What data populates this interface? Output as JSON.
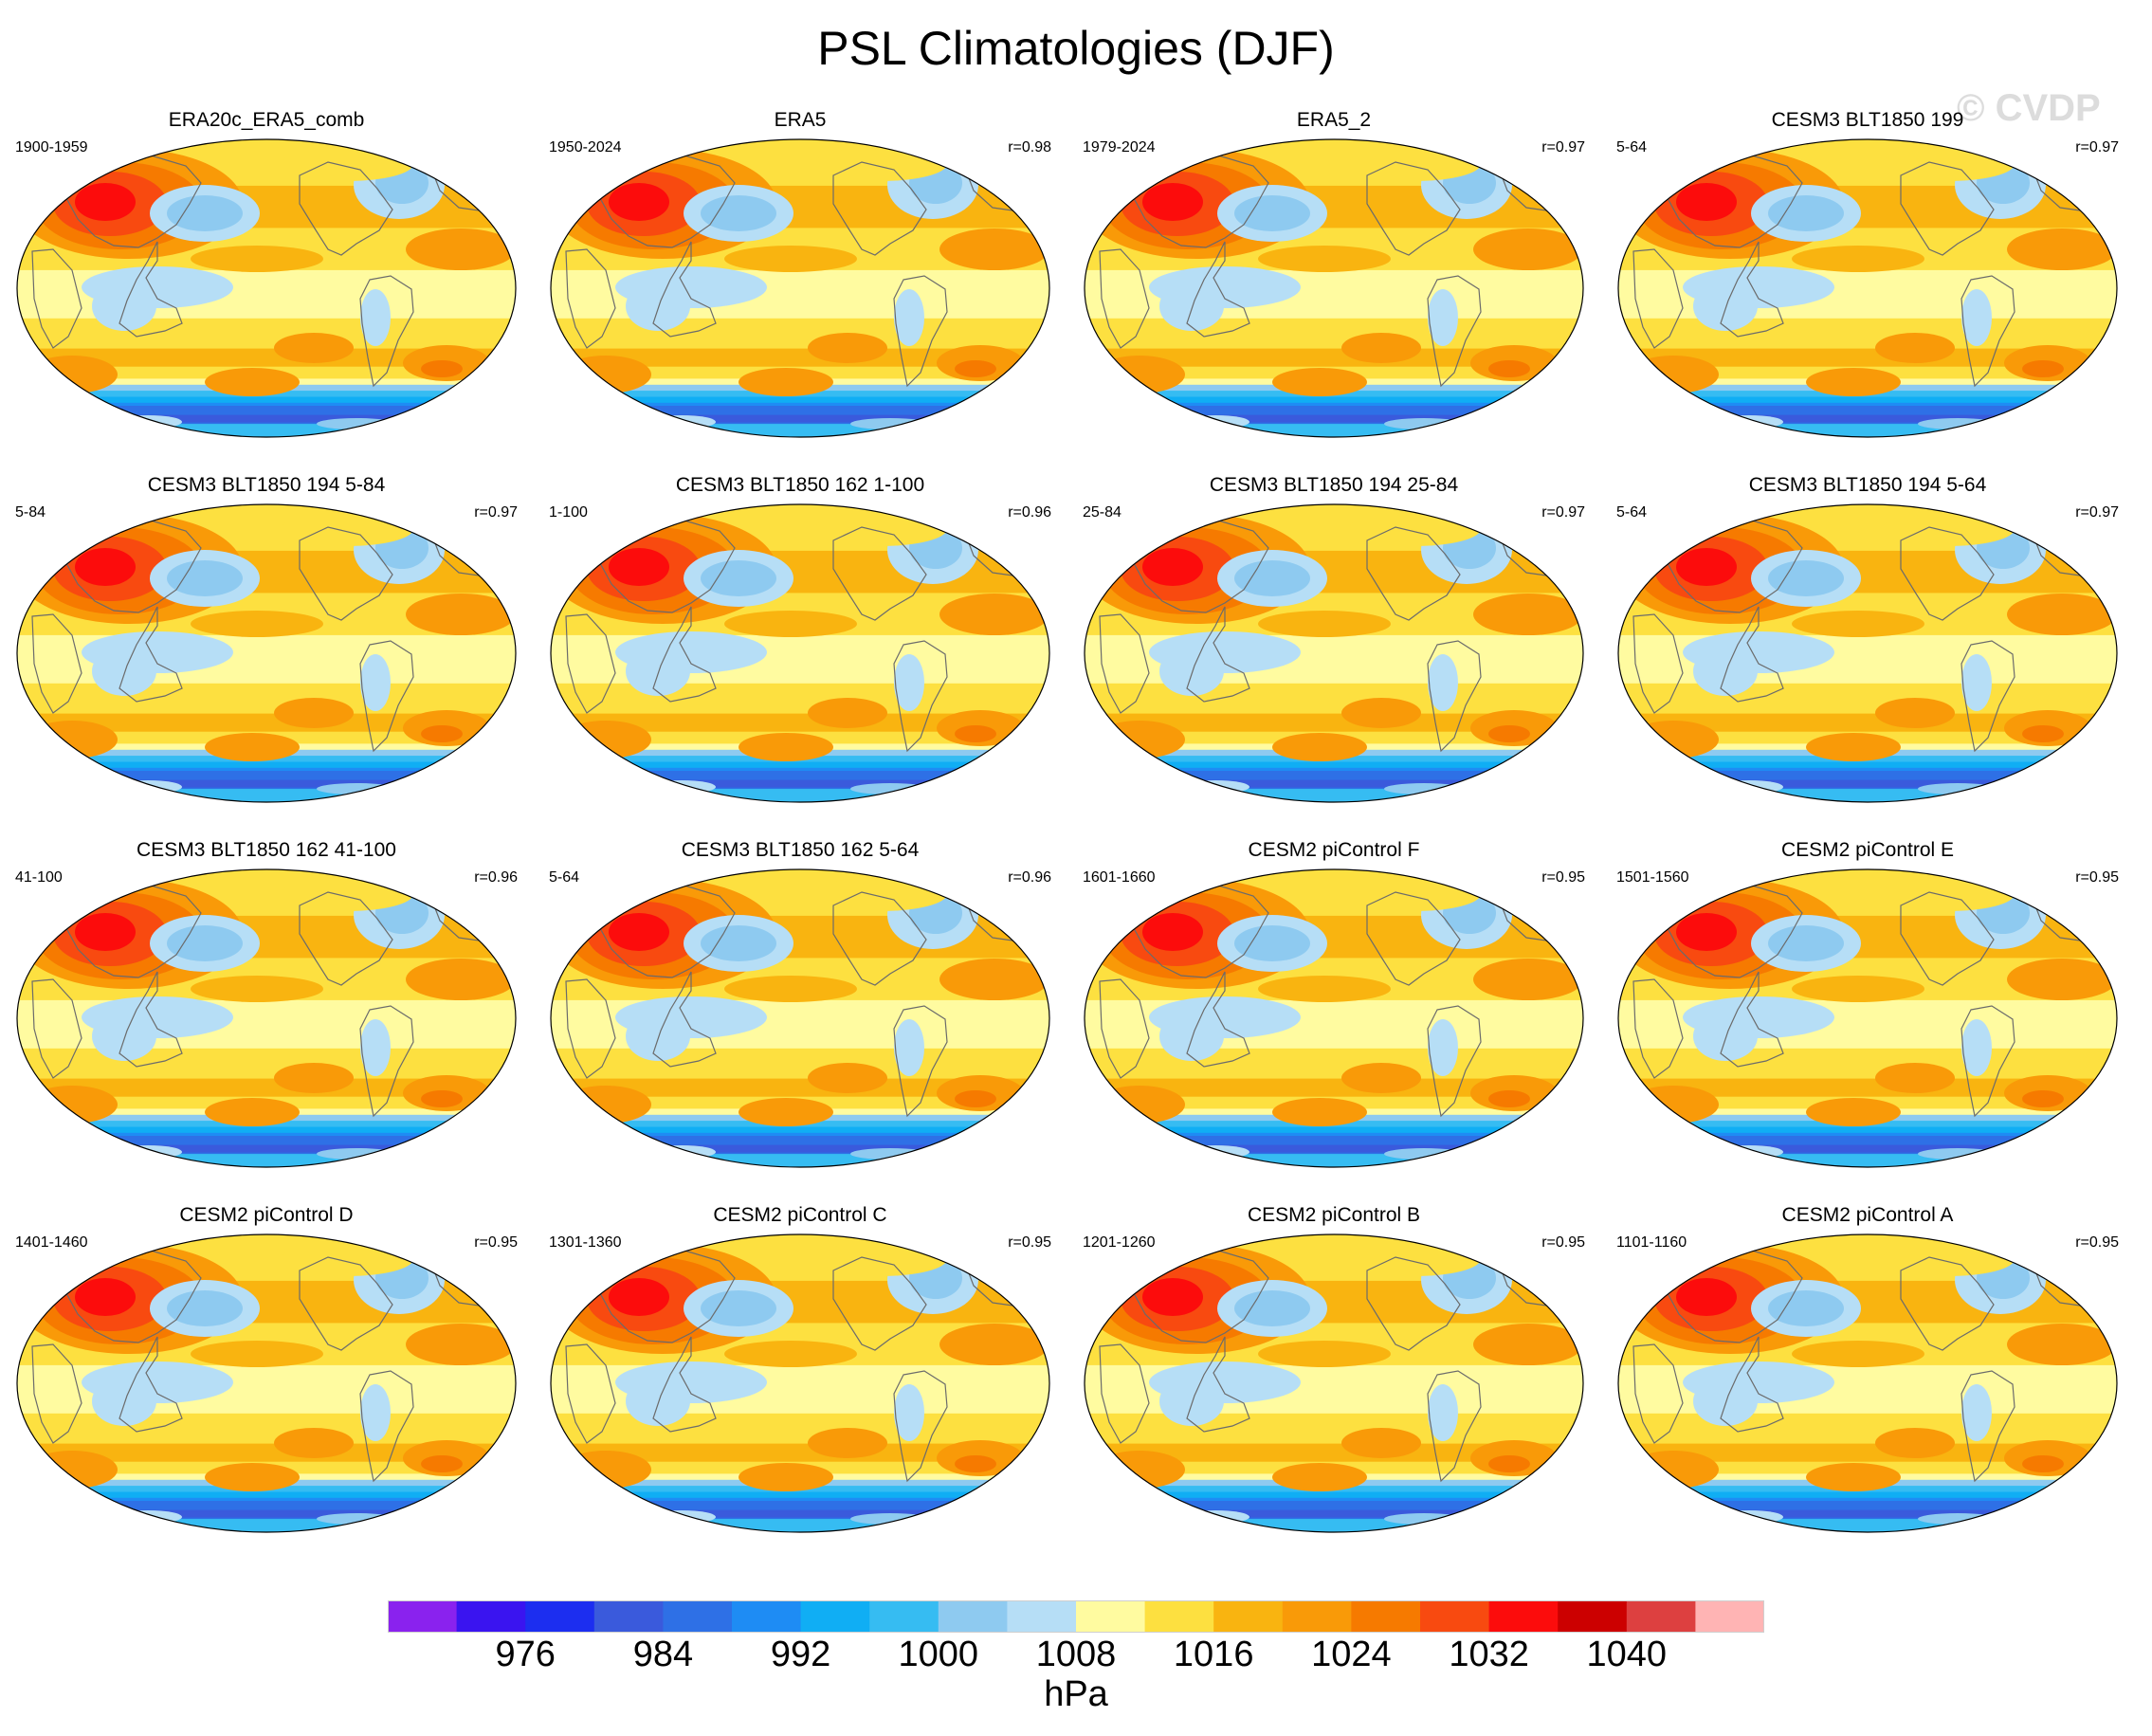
{
  "figure_title": "PSL Climatologies (DJF)",
  "watermark": "© CVDP",
  "chart_data": {
    "type": "heatmap",
    "title": "PSL Climatologies (DJF)",
    "variable": "PSL",
    "season": "DJF",
    "units": "hPa",
    "colorbar": {
      "tick_labels": [
        "976",
        "984",
        "992",
        "1000",
        "1008",
        "1016",
        "1024",
        "1032",
        "1040"
      ],
      "tick_values": [
        976,
        984,
        992,
        1000,
        1008,
        1016,
        1024,
        1032,
        1040
      ],
      "levels": [
        972,
        976,
        980,
        984,
        988,
        992,
        996,
        1000,
        1004,
        1008,
        1012,
        1016,
        1020,
        1024,
        1028,
        1032,
        1036,
        1040,
        1044
      ],
      "colors": [
        "#8a22ee",
        "#3a14f0",
        "#1c2ef0",
        "#3a5adc",
        "#2e70e6",
        "#1e8cf4",
        "#10aef4",
        "#36bcf2",
        "#8ecaf0",
        "#b6def6",
        "#fffba0",
        "#fde040",
        "#f9b410",
        "#f99a08",
        "#f67a00",
        "#f84a10",
        "#fc0c0c",
        "#cc0000",
        "#dd4040",
        "#ffb4b4"
      ]
    },
    "panels": [
      {
        "title": "ERA20c_ERA5_comb",
        "period": "1900-1959",
        "corr": ""
      },
      {
        "title": "ERA5",
        "period": "1950-2024",
        "corr": "r=0.98"
      },
      {
        "title": "ERA5_2",
        "period": "1979-2024",
        "corr": "r=0.97"
      },
      {
        "title": "CESM3 BLT1850 199",
        "period": "5-64",
        "corr": "r=0.97"
      },
      {
        "title": "CESM3 BLT1850 194 5-84",
        "period": "5-84",
        "corr": "r=0.97"
      },
      {
        "title": "CESM3 BLT1850 162 1-100",
        "period": "1-100",
        "corr": "r=0.96"
      },
      {
        "title": "CESM3 BLT1850 194 25-84",
        "period": "25-84",
        "corr": "r=0.97"
      },
      {
        "title": "CESM3 BLT1850 194 5-64",
        "period": "5-64",
        "corr": "r=0.97"
      },
      {
        "title": "CESM3 BLT1850 162 41-100",
        "period": "41-100",
        "corr": "r=0.96"
      },
      {
        "title": "CESM3 BLT1850 162 5-64",
        "period": "5-64",
        "corr": "r=0.96"
      },
      {
        "title": "CESM2 piControl F",
        "period": "1601-1660",
        "corr": "r=0.95"
      },
      {
        "title": "CESM2 piControl E",
        "period": "1501-1560",
        "corr": "r=0.95"
      },
      {
        "title": "CESM2 piControl D",
        "period": "1401-1460",
        "corr": "r=0.95"
      },
      {
        "title": "CESM2 piControl C",
        "period": "1301-1360",
        "corr": "r=0.95"
      },
      {
        "title": "CESM2 piControl B",
        "period": "1201-1260",
        "corr": "r=0.95"
      },
      {
        "title": "CESM2 piControl A",
        "period": "1101-1160",
        "corr": "r=0.95"
      }
    ]
  }
}
